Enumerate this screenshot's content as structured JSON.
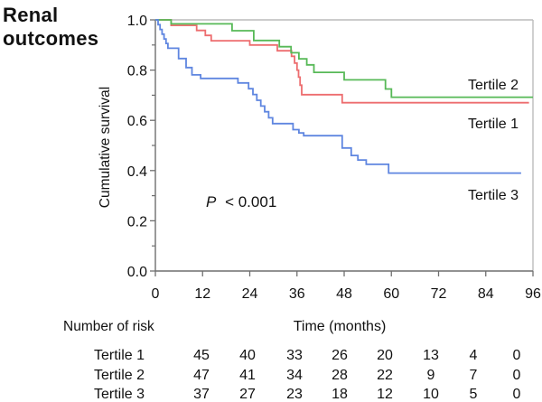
{
  "title_lines": [
    "Renal",
    "outcomes"
  ],
  "chart_data": {
    "type": "line",
    "subtype": "kaplan-meier-step-survival",
    "title": "Renal outcomes",
    "xlabel": "Time (months)",
    "ylabel": "Cumulative survival",
    "xlim": [
      0,
      96
    ],
    "ylim": [
      0.0,
      1.0
    ],
    "xticks": [
      0,
      12,
      24,
      36,
      48,
      60,
      72,
      84,
      96
    ],
    "yticks": [
      0.0,
      0.2,
      0.4,
      0.6,
      0.8,
      1.0
    ],
    "y_minor_ticks": [
      0.1,
      0.3,
      0.5,
      0.7,
      0.9
    ],
    "grid": false,
    "legend_position": "labels-on-plot-right",
    "annotation": {
      "text": "P < 0.001",
      "prefix": "P",
      "rest": "< 0.001"
    },
    "series": [
      {
        "name": "Tertile 1",
        "color": "#ed6d6f",
        "end": 95,
        "points": [
          [
            0,
            1.0
          ],
          [
            4,
            0.978
          ],
          [
            10.5,
            0.958
          ],
          [
            12.7,
            0.938
          ],
          [
            14.2,
            0.917
          ],
          [
            24,
            0.9
          ],
          [
            31,
            0.877
          ],
          [
            34.6,
            0.855
          ],
          [
            35.4,
            0.828
          ],
          [
            36,
            0.8
          ],
          [
            36.4,
            0.772
          ],
          [
            36.8,
            0.74
          ],
          [
            37.2,
            0.702
          ],
          [
            47.5,
            0.67
          ]
        ]
      },
      {
        "name": "Tertile 2",
        "color": "#57b957",
        "end": 96,
        "points": [
          [
            0,
            1.0
          ],
          [
            4,
            0.984
          ],
          [
            19.5,
            0.957
          ],
          [
            25,
            0.918
          ],
          [
            31.5,
            0.893
          ],
          [
            34.5,
            0.869
          ],
          [
            36.5,
            0.845
          ],
          [
            38.5,
            0.821
          ],
          [
            40.3,
            0.791
          ],
          [
            48,
            0.761
          ],
          [
            58.5,
            0.725
          ],
          [
            60,
            0.692
          ]
        ]
      },
      {
        "name": "Tertile 3",
        "color": "#5f86e0",
        "end": 93,
        "points": [
          [
            0,
            1.0
          ],
          [
            0.7,
            0.981
          ],
          [
            1.2,
            0.962
          ],
          [
            1.7,
            0.943
          ],
          [
            2.2,
            0.924
          ],
          [
            2.7,
            0.906
          ],
          [
            3.2,
            0.887
          ],
          [
            5.9,
            0.846
          ],
          [
            7.8,
            0.81
          ],
          [
            9.3,
            0.781
          ],
          [
            11.5,
            0.767
          ],
          [
            21,
            0.749
          ],
          [
            23.7,
            0.726
          ],
          [
            24.8,
            0.703
          ],
          [
            25.8,
            0.68
          ],
          [
            26.8,
            0.657
          ],
          [
            27.8,
            0.634
          ],
          [
            28.8,
            0.61
          ],
          [
            29.8,
            0.587
          ],
          [
            35,
            0.563
          ],
          [
            36.5,
            0.55
          ],
          [
            37.7,
            0.539
          ],
          [
            47.5,
            0.49
          ],
          [
            49.8,
            0.46
          ],
          [
            51.5,
            0.442
          ],
          [
            53.6,
            0.425
          ],
          [
            59.3,
            0.39
          ]
        ]
      }
    ],
    "risk_table": {
      "heading": "Number of risk",
      "columns_months": [
        12,
        24,
        36,
        48,
        60,
        72,
        84,
        96
      ],
      "rows": [
        {
          "name": "Tertile 1",
          "values": [
            45,
            40,
            33,
            26,
            20,
            13,
            4,
            0
          ]
        },
        {
          "name": "Tertile 2",
          "values": [
            47,
            41,
            34,
            28,
            22,
            9,
            7,
            0
          ]
        },
        {
          "name": "Tertile 3",
          "values": [
            37,
            27,
            23,
            18,
            12,
            10,
            5,
            0
          ]
        }
      ]
    }
  }
}
